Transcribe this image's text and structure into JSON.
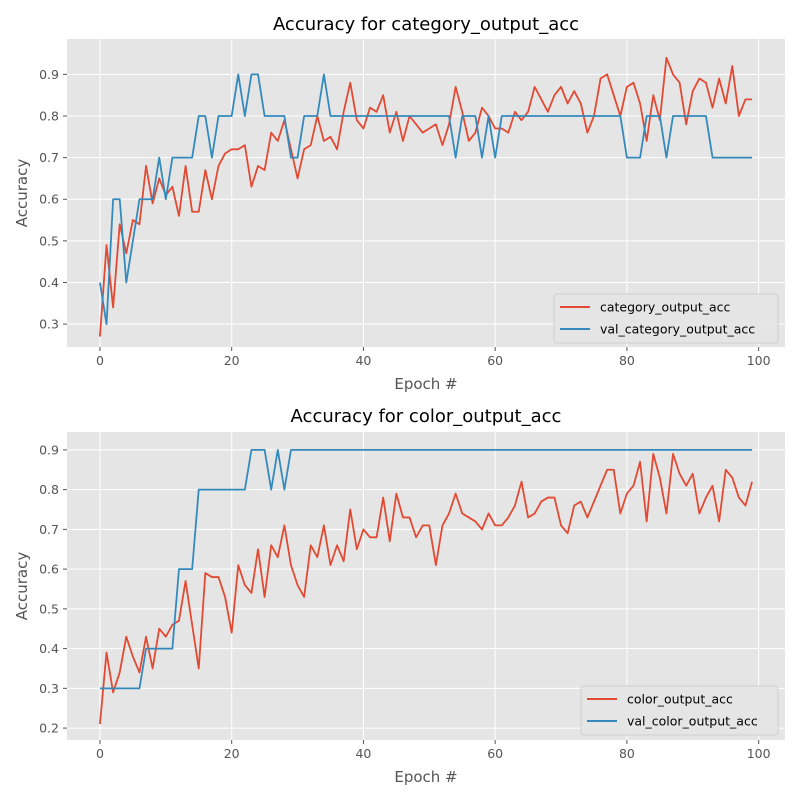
{
  "chart_data": [
    {
      "type": "line",
      "title": "Accuracy for category_output_acc",
      "xlabel": "Epoch #",
      "ylabel": "Accuracy",
      "xlim": [
        -5,
        104
      ],
      "ylim": [
        0.245,
        0.985
      ],
      "xticks": [
        0,
        20,
        40,
        60,
        80,
        100
      ],
      "yticks": [
        0.3,
        0.4,
        0.5,
        0.6,
        0.7,
        0.8,
        0.9
      ],
      "grid": true,
      "legend_position": "lower-right",
      "series": [
        {
          "name": "category_output_acc",
          "color": "#e24a33",
          "values": [
            0.27,
            0.49,
            0.34,
            0.54,
            0.47,
            0.55,
            0.54,
            0.68,
            0.59,
            0.65,
            0.61,
            0.63,
            0.56,
            0.68,
            0.57,
            0.57,
            0.67,
            0.6,
            0.68,
            0.71,
            0.72,
            0.72,
            0.73,
            0.63,
            0.68,
            0.67,
            0.76,
            0.74,
            0.79,
            0.72,
            0.65,
            0.72,
            0.73,
            0.8,
            0.74,
            0.75,
            0.72,
            0.81,
            0.88,
            0.79,
            0.77,
            0.82,
            0.81,
            0.85,
            0.76,
            0.81,
            0.74,
            0.8,
            0.78,
            0.76,
            0.77,
            0.78,
            0.73,
            0.78,
            0.87,
            0.81,
            0.74,
            0.76,
            0.82,
            0.8,
            0.77,
            0.77,
            0.76,
            0.81,
            0.79,
            0.81,
            0.87,
            0.84,
            0.81,
            0.85,
            0.87,
            0.83,
            0.86,
            0.83,
            0.76,
            0.8,
            0.89,
            0.9,
            0.85,
            0.8,
            0.87,
            0.88,
            0.83,
            0.74,
            0.85,
            0.79,
            0.94,
            0.9,
            0.88,
            0.78,
            0.86,
            0.89,
            0.88,
            0.82,
            0.89,
            0.83,
            0.92,
            0.8,
            0.84,
            0.84
          ]
        },
        {
          "name": "val_category_output_acc",
          "color": "#348abd",
          "values": [
            0.4,
            0.3,
            0.6,
            0.6,
            0.4,
            0.5,
            0.6,
            0.6,
            0.6,
            0.7,
            0.6,
            0.7,
            0.7,
            0.7,
            0.7,
            0.8,
            0.8,
            0.7,
            0.8,
            0.8,
            0.8,
            0.9,
            0.8,
            0.9,
            0.9,
            0.8,
            0.8,
            0.8,
            0.8,
            0.7,
            0.7,
            0.8,
            0.8,
            0.8,
            0.9,
            0.8,
            0.8,
            0.8,
            0.8,
            0.8,
            0.8,
            0.8,
            0.8,
            0.8,
            0.8,
            0.8,
            0.8,
            0.8,
            0.8,
            0.8,
            0.8,
            0.8,
            0.8,
            0.8,
            0.7,
            0.8,
            0.8,
            0.8,
            0.7,
            0.8,
            0.7,
            0.8,
            0.8,
            0.8,
            0.8,
            0.8,
            0.8,
            0.8,
            0.8,
            0.8,
            0.8,
            0.8,
            0.8,
            0.8,
            0.8,
            0.8,
            0.8,
            0.8,
            0.8,
            0.8,
            0.7,
            0.7,
            0.7,
            0.8,
            0.8,
            0.8,
            0.7,
            0.8,
            0.8,
            0.8,
            0.8,
            0.8,
            0.8,
            0.7,
            0.7,
            0.7,
            0.7,
            0.7,
            0.7,
            0.7
          ]
        }
      ]
    },
    {
      "type": "line",
      "title": "Accuracy for color_output_acc",
      "xlabel": "Epoch #",
      "ylabel": "Accuracy",
      "xlim": [
        -5,
        104
      ],
      "ylim": [
        0.17,
        0.945
      ],
      "xticks": [
        0,
        20,
        40,
        60,
        80,
        100
      ],
      "yticks": [
        0.2,
        0.3,
        0.4,
        0.5,
        0.6,
        0.7,
        0.8,
        0.9
      ],
      "grid": true,
      "legend_position": "lower-right",
      "series": [
        {
          "name": "color_output_acc",
          "color": "#e24a33",
          "values": [
            0.21,
            0.39,
            0.29,
            0.34,
            0.43,
            0.38,
            0.34,
            0.43,
            0.35,
            0.45,
            0.43,
            0.46,
            0.47,
            0.57,
            0.46,
            0.35,
            0.59,
            0.58,
            0.58,
            0.53,
            0.44,
            0.61,
            0.56,
            0.54,
            0.65,
            0.53,
            0.66,
            0.63,
            0.71,
            0.61,
            0.56,
            0.53,
            0.66,
            0.63,
            0.71,
            0.61,
            0.66,
            0.62,
            0.75,
            0.65,
            0.7,
            0.68,
            0.68,
            0.78,
            0.67,
            0.79,
            0.73,
            0.73,
            0.68,
            0.71,
            0.71,
            0.61,
            0.71,
            0.74,
            0.79,
            0.74,
            0.73,
            0.72,
            0.7,
            0.74,
            0.71,
            0.71,
            0.73,
            0.76,
            0.82,
            0.73,
            0.74,
            0.77,
            0.78,
            0.78,
            0.71,
            0.69,
            0.76,
            0.77,
            0.73,
            0.77,
            0.81,
            0.85,
            0.85,
            0.74,
            0.79,
            0.81,
            0.87,
            0.72,
            0.89,
            0.83,
            0.74,
            0.89,
            0.84,
            0.81,
            0.84,
            0.74,
            0.78,
            0.81,
            0.72,
            0.85,
            0.83,
            0.78,
            0.76,
            0.82
          ]
        },
        {
          "name": "val_color_output_acc",
          "color": "#348abd",
          "values": [
            0.3,
            0.3,
            0.3,
            0.3,
            0.3,
            0.3,
            0.3,
            0.4,
            0.4,
            0.4,
            0.4,
            0.4,
            0.6,
            0.6,
            0.6,
            0.8,
            0.8,
            0.8,
            0.8,
            0.8,
            0.8,
            0.8,
            0.8,
            0.9,
            0.9,
            0.9,
            0.8,
            0.9,
            0.8,
            0.9,
            0.9,
            0.9,
            0.9,
            0.9,
            0.9,
            0.9,
            0.9,
            0.9,
            0.9,
            0.9,
            0.9,
            0.9,
            0.9,
            0.9,
            0.9,
            0.9,
            0.9,
            0.9,
            0.9,
            0.9,
            0.9,
            0.9,
            0.9,
            0.9,
            0.9,
            0.9,
            0.9,
            0.9,
            0.9,
            0.9,
            0.9,
            0.9,
            0.9,
            0.9,
            0.9,
            0.9,
            0.9,
            0.9,
            0.9,
            0.9,
            0.9,
            0.9,
            0.9,
            0.9,
            0.9,
            0.9,
            0.9,
            0.9,
            0.9,
            0.9,
            0.9,
            0.9,
            0.9,
            0.9,
            0.9,
            0.9,
            0.9,
            0.9,
            0.9,
            0.9,
            0.9,
            0.9,
            0.9,
            0.9,
            0.9,
            0.9,
            0.9,
            0.9,
            0.9,
            0.9
          ]
        }
      ]
    }
  ]
}
